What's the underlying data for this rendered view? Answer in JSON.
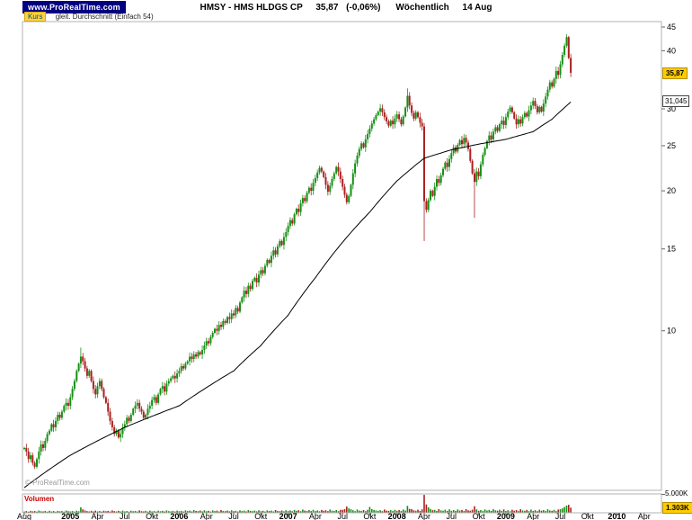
{
  "header": {
    "brand": "www.ProRealTime.com",
    "symbol": "HMSY - HMS HLDGS CP",
    "price": "35,87",
    "change": "(-0,06%)",
    "timeframe": "Wöchentlich",
    "date": "14 Aug"
  },
  "legend": {
    "price_label": "Kurs",
    "ma_label": "gleit. Durchschnitt (Einfach 54)"
  },
  "watermark": "© ProRealTime.com",
  "volume_panel": {
    "label": "Volumen",
    "scale_label": "5.000K",
    "last_value_label": "1.303K"
  },
  "axis": {
    "price_ticks": [
      45,
      40,
      30,
      25,
      20,
      15,
      10
    ],
    "last_price_label": "35,87",
    "ma_value_label": "31,045",
    "time_ticks": [
      {
        "label": "Aug",
        "week": 0,
        "bold": false
      },
      {
        "label": "2005",
        "week": 22,
        "bold": true
      },
      {
        "label": "Apr",
        "week": 35,
        "bold": false
      },
      {
        "label": "Jul",
        "week": 48,
        "bold": false
      },
      {
        "label": "Okt",
        "week": 61,
        "bold": false
      },
      {
        "label": "2006",
        "week": 74,
        "bold": true
      },
      {
        "label": "Apr",
        "week": 87,
        "bold": false
      },
      {
        "label": "Jul",
        "week": 100,
        "bold": false
      },
      {
        "label": "Okt",
        "week": 113,
        "bold": false
      },
      {
        "label": "2007",
        "week": 126,
        "bold": true
      },
      {
        "label": "Apr",
        "week": 139,
        "bold": false
      },
      {
        "label": "Jul",
        "week": 152,
        "bold": false
      },
      {
        "label": "Okt",
        "week": 165,
        "bold": false
      },
      {
        "label": "2008",
        "week": 178,
        "bold": true
      },
      {
        "label": "Apr",
        "week": 191,
        "bold": false
      },
      {
        "label": "Jul",
        "week": 204,
        "bold": false
      },
      {
        "label": "Okt",
        "week": 217,
        "bold": false
      },
      {
        "label": "2009",
        "week": 230,
        "bold": true
      },
      {
        "label": "Apr",
        "week": 243,
        "bold": false
      },
      {
        "label": "Jul",
        "week": 256,
        "bold": false
      },
      {
        "label": "Okt",
        "week": 269,
        "bold": false
      },
      {
        "label": "2010",
        "week": 283,
        "bold": true
      },
      {
        "label": "Apr",
        "week": 296,
        "bold": false
      }
    ]
  },
  "colors": {
    "up": "#159015",
    "down": "#aa2020",
    "ma": "#000000",
    "label_highlight": "#ffcc00",
    "brand_bg": "#000080",
    "volume_label": "#cc0000",
    "price_label_bg": "#ffd24a",
    "frame": "#b3b3b3"
  },
  "chart_data": {
    "type": "candlestick",
    "title": "HMSY - HMS HLDGS CP",
    "timeframe": "weekly",
    "period_start": "Aug 2004",
    "period_end": "14 Aug 2009",
    "y_scale": "logarithmic",
    "y_range": [
      4.5,
      46.5
    ],
    "last_price": 35.87,
    "sma54_period": 54,
    "sma54_last": 31.045,
    "volume_scale_max_k": 5000,
    "last_volume_k": 1303,
    "closes": [
      5.6,
      5.5,
      5.3,
      5.4,
      5.2,
      5.1,
      5.3,
      5.5,
      5.7,
      5.6,
      5.8,
      6.0,
      6.1,
      6.3,
      6.2,
      6.4,
      6.6,
      6.5,
      6.7,
      6.9,
      7.0,
      6.9,
      7.2,
      7.5,
      7.8,
      8.2,
      8.5,
      8.8,
      8.6,
      8.3,
      8.0,
      8.2,
      7.8,
      7.5,
      7.3,
      7.6,
      7.8,
      7.5,
      7.2,
      7.0,
      6.7,
      6.4,
      6.2,
      6.0,
      6.1,
      5.9,
      6.0,
      6.2,
      6.3,
      6.5,
      6.4,
      6.6,
      6.8,
      6.9,
      7.0,
      6.8,
      6.7,
      6.5,
      6.6,
      6.8,
      6.9,
      7.1,
      7.2,
      7.0,
      7.3,
      7.5,
      7.6,
      7.4,
      7.7,
      7.8,
      7.9,
      8.0,
      7.9,
      8.1,
      8.2,
      8.4,
      8.3,
      8.5,
      8.6,
      8.8,
      8.7,
      8.9,
      8.8,
      9.0,
      8.9,
      9.1,
      9.3,
      9.5,
      9.4,
      9.7,
      9.9,
      10.1,
      10.0,
      10.3,
      10.2,
      10.5,
      10.4,
      10.7,
      10.6,
      10.9,
      10.8,
      11.2,
      11.0,
      11.5,
      11.8,
      12.2,
      12.0,
      12.5,
      12.3,
      12.8,
      13.0,
      12.7,
      13.2,
      13.5,
      13.3,
      13.8,
      14.2,
      14.0,
      14.5,
      14.9,
      14.6,
      15.2,
      15.6,
      15.3,
      15.9,
      16.3,
      16.8,
      17.3,
      17.0,
      17.8,
      18.3,
      18.0,
      18.8,
      19.3,
      19.0,
      19.8,
      20.3,
      20.0,
      20.8,
      21.3,
      21.9,
      22.4,
      22.0,
      21.4,
      20.6,
      19.9,
      20.5,
      21.2,
      21.8,
      22.5,
      22.0,
      21.2,
      20.4,
      19.6,
      18.9,
      19.5,
      20.6,
      21.8,
      22.9,
      23.8,
      24.6,
      25.3,
      24.8,
      25.8,
      26.5,
      27.2,
      27.9,
      28.5,
      29.1,
      29.6,
      30.1,
      29.5,
      28.8,
      28.2,
      27.6,
      28.3,
      27.8,
      28.6,
      29.2,
      28.5,
      27.8,
      28.9,
      30.2,
      32.0,
      30.5,
      29.4,
      28.6,
      29.5,
      28.8,
      28.0,
      27.5,
      19.0,
      18.2,
      19.1,
      20.0,
      19.5,
      20.4,
      21.2,
      20.8,
      21.6,
      22.3,
      23.0,
      22.5,
      23.4,
      24.1,
      24.8,
      24.3,
      25.1,
      25.7,
      25.2,
      26.0,
      25.4,
      24.6,
      23.2,
      21.8,
      20.9,
      22.0,
      21.5,
      22.8,
      23.9,
      24.7,
      25.6,
      26.3,
      25.8,
      26.8,
      27.4,
      26.9,
      27.8,
      28.3,
      27.7,
      28.8,
      29.6,
      30.2,
      29.5,
      28.6,
      27.8,
      28.5,
      27.9,
      28.8,
      29.4,
      28.9,
      29.8,
      30.5,
      31.2,
      30.4,
      29.5,
      30.3,
      29.6,
      30.8,
      31.9,
      33.0,
      34.2,
      33.5,
      34.8,
      36.2,
      35.5,
      37.4,
      39.2,
      41.0,
      42.8,
      38.6,
      35.87
    ],
    "volumes_k": [
      220,
      340,
      180,
      430,
      270,
      360,
      200,
      490,
      300,
      250,
      390,
      210,
      450,
      220,
      340,
      180,
      430,
      270,
      360,
      200,
      490,
      300,
      240,
      360,
      200,
      460,
      290,
      1400,
      820,
      530,
      320,
      260,
      420,
      230,
      480,
      240,
      360,
      200,
      460,
      290,
      390,
      220,
      530,
      320,
      260,
      420,
      230,
      480,
      240,
      360,
      200,
      460,
      290,
      390,
      220,
      530,
      320,
      260,
      420,
      230,
      480,
      240,
      360,
      200,
      460,
      290,
      390,
      220,
      530,
      320,
      260,
      420,
      230,
      480,
      290,
      430,
      230,
      550,
      340,
      470,
      260,
      630,
      390,
      320,
      500,
      270,
      580,
      290,
      430,
      230,
      550,
      340,
      470,
      260,
      630,
      390,
      320,
      500,
      270,
      580,
      290,
      430,
      230,
      550,
      340,
      470,
      260,
      630,
      390,
      320,
      500,
      270,
      580,
      290,
      430,
      230,
      550,
      340,
      470,
      260,
      630,
      390,
      320,
      500,
      270,
      580,
      350,
      530,
      290,
      670,
      420,
      570,
      320,
      770,
      470,
      390,
      620,
      330,
      700,
      350,
      530,
      290,
      670,
      420,
      570,
      320,
      770,
      470,
      390,
      620,
      330,
      700,
      700,
      900,
      1600,
      1100,
      850,
      570,
      320,
      770,
      470,
      390,
      620,
      330,
      700,
      1500,
      900,
      670,
      530,
      420,
      570,
      320,
      770,
      470,
      390,
      620,
      330,
      700,
      420,
      630,
      340,
      790,
      500,
      1800,
      950,
      910,
      550,
      460,
      730,
      390,
      830,
      4850,
      2200,
      1400,
      950,
      600,
      680,
      380,
      910,
      550,
      460,
      730,
      390,
      830,
      420,
      630,
      340,
      790,
      500,
      680,
      380,
      910,
      550,
      460,
      730,
      1700,
      830,
      420,
      630,
      340,
      790,
      500,
      680,
      380,
      910,
      550,
      460,
      730,
      390,
      830,
      380,
      580,
      310,
      730,
      460,
      620,
      350,
      840,
      520,
      420,
      670,
      360,
      770,
      380,
      580,
      310,
      730,
      460,
      620,
      350,
      840,
      520,
      420,
      670,
      360,
      770,
      900,
      1100,
      1500,
      1900,
      2100,
      1303
    ],
    "sma54_anchors": [
      [
        0,
        4.6
      ],
      [
        22,
        5.4
      ],
      [
        48,
        6.2
      ],
      [
        74,
        6.9
      ],
      [
        100,
        8.2
      ],
      [
        113,
        9.3
      ],
      [
        126,
        10.8
      ],
      [
        139,
        13.0
      ],
      [
        152,
        15.5
      ],
      [
        165,
        18.0
      ],
      [
        178,
        21.0
      ],
      [
        191,
        23.5
      ],
      [
        204,
        24.5
      ],
      [
        217,
        25.2
      ],
      [
        230,
        25.8
      ],
      [
        243,
        26.8
      ],
      [
        252,
        28.5
      ],
      [
        261,
        31.045
      ]
    ],
    "candle_overrides": {
      "27": {
        "high": 9.2
      },
      "183": {
        "high": 33.2
      },
      "191": {
        "low": 15.6
      },
      "215": {
        "low": 17.5
      },
      "259": {
        "high": 43.4
      }
    }
  }
}
